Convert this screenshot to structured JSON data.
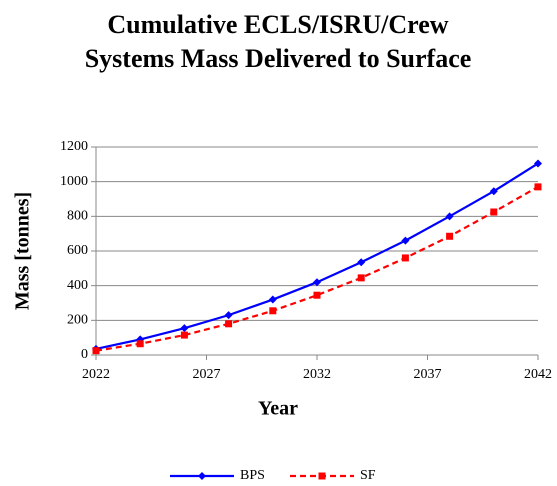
{
  "chart_data": {
    "type": "line",
    "title": "Cumulative ECLS/ISRU/Crew Systems Mass Delivered to Surface",
    "x_label": "Year",
    "y_label": "Mass [tonnes]",
    "x": [
      2022,
      2024,
      2026,
      2028,
      2030,
      2032,
      2034,
      2036,
      2038,
      2040,
      2042
    ],
    "series": [
      {
        "name": "BPS",
        "color": "#0000ff",
        "dash": "solid",
        "marker": "diamond",
        "values": [
          35,
          90,
          155,
          230,
          320,
          420,
          535,
          660,
          800,
          945,
          1105
        ]
      },
      {
        "name": "SF",
        "color": "#ff0000",
        "dash": "dashed",
        "marker": "square",
        "values": [
          25,
          65,
          115,
          180,
          255,
          345,
          445,
          560,
          685,
          825,
          970
        ]
      }
    ],
    "xlim": [
      2022,
      2042
    ],
    "xticks": [
      2022,
      2027,
      2032,
      2037,
      2042
    ],
    "ylim": [
      0,
      1200
    ],
    "yticks": [
      0,
      200,
      400,
      600,
      800,
      1000,
      1200
    ],
    "grid": true,
    "legend": "bottom"
  }
}
